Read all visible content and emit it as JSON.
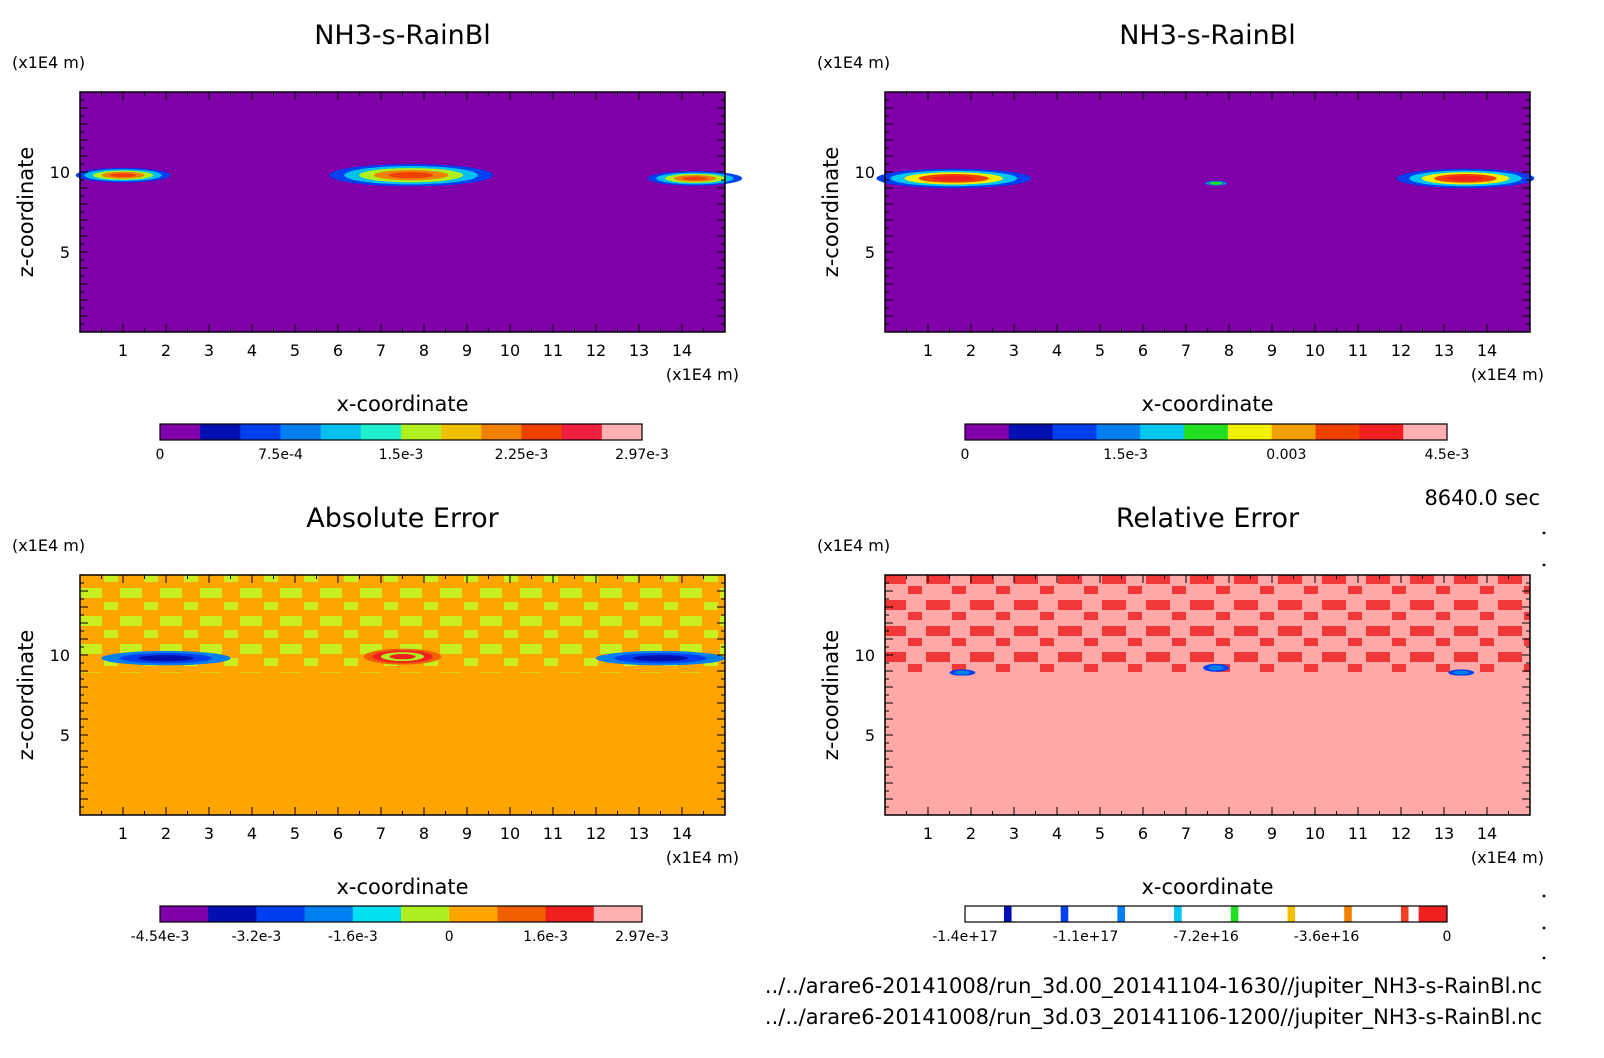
{
  "time_label": "8640.0 sec",
  "file_paths": [
    "../../arare6-20141008/run_3d.00_20141104-1630//jupiter_NH3-s-RainBl.nc",
    "../../arare6-20141008/run_3d.03_20141106-1200//jupiter_NH3-s-RainBl.nc"
  ],
  "chart_data": [
    {
      "type": "heatmap",
      "title": "NH3-s-RainBl",
      "xlabel": "x-coordinate",
      "ylabel": "z-coordinate",
      "x_unit": "(x1E4 m)",
      "y_unit": "(x1E4 m)",
      "xlim": [
        0,
        15
      ],
      "ylim": [
        0,
        15
      ],
      "x_ticks": [
        "1",
        "2",
        "3",
        "4",
        "5",
        "6",
        "7",
        "8",
        "9",
        "10",
        "11",
        "12",
        "13",
        "14"
      ],
      "y_ticks": [
        "5",
        "10"
      ],
      "background_color": "#7f00a8",
      "colorbar": {
        "colors": [
          "#7f00a8",
          "#0010b0",
          "#0040f0",
          "#0080f0",
          "#00c0f0",
          "#20f0d0",
          "#b0f020",
          "#f0c000",
          "#f08000",
          "#f04000",
          "#f02040",
          "#ffb0b0"
        ],
        "labels": [
          "0",
          "7.5e-4",
          "1.5e-3",
          "2.25e-3",
          "2.97e-3"
        ]
      },
      "features": [
        {
          "x_center": 1.0,
          "z_center": 9.8,
          "width": 2.2,
          "height": 0.9,
          "peak": "high"
        },
        {
          "x_center": 7.7,
          "z_center": 9.8,
          "width": 3.8,
          "height": 1.4,
          "peak": "high"
        },
        {
          "x_center": 14.3,
          "z_center": 9.6,
          "width": 2.2,
          "height": 0.9,
          "peak": "high"
        }
      ]
    },
    {
      "type": "heatmap",
      "title": "NH3-s-RainBl",
      "xlabel": "x-coordinate",
      "ylabel": "z-coordinate",
      "x_unit": "(x1E4 m)",
      "y_unit": "(x1E4 m)",
      "xlim": [
        0,
        15
      ],
      "ylim": [
        0,
        15
      ],
      "x_ticks": [
        "1",
        "2",
        "3",
        "4",
        "5",
        "6",
        "7",
        "8",
        "9",
        "10",
        "11",
        "12",
        "13",
        "14"
      ],
      "y_ticks": [
        "5",
        "10"
      ],
      "background_color": "#7f00a8",
      "colorbar": {
        "colors": [
          "#7f00a8",
          "#0010b0",
          "#0040f0",
          "#0080f0",
          "#00c8f0",
          "#20e020",
          "#f0f000",
          "#f0a000",
          "#f04000",
          "#f02020",
          "#ffb0b0"
        ],
        "labels": [
          "0",
          "1.5e-3",
          "0.003",
          "4.5e-3"
        ]
      },
      "features": [
        {
          "x_center": 1.6,
          "z_center": 9.6,
          "width": 3.6,
          "height": 1.2,
          "peak": "high"
        },
        {
          "x_center": 7.7,
          "z_center": 9.3,
          "width": 0.5,
          "height": 0.3,
          "peak": "low"
        },
        {
          "x_center": 13.5,
          "z_center": 9.6,
          "width": 3.2,
          "height": 1.2,
          "peak": "high"
        }
      ]
    },
    {
      "type": "heatmap",
      "title": "Absolute Error",
      "xlabel": "x-coordinate",
      "ylabel": "z-coordinate",
      "x_unit": "(x1E4 m)",
      "y_unit": "(x1E4 m)",
      "xlim": [
        0,
        15
      ],
      "ylim": [
        0,
        15
      ],
      "x_ticks": [
        "1",
        "2",
        "3",
        "4",
        "5",
        "6",
        "7",
        "8",
        "9",
        "10",
        "11",
        "12",
        "13",
        "14"
      ],
      "y_ticks": [
        "5",
        "10"
      ],
      "background_color": "#ffa500",
      "colorbar": {
        "colors": [
          "#7f00a8",
          "#0010b0",
          "#0040f0",
          "#0080f0",
          "#00e0f0",
          "#b0f020",
          "#ffa500",
          "#f06000",
          "#f02020",
          "#ffb0b0"
        ],
        "labels": [
          "-4.54e-3",
          "-3.2e-3",
          "-1.6e-3",
          "0",
          "1.6e-3",
          "2.97e-3"
        ]
      },
      "features": [
        {
          "x_center": 2.0,
          "z_center": 9.8,
          "width": 3.0,
          "height": 0.9,
          "peak": "negative"
        },
        {
          "x_center": 7.5,
          "z_center": 9.9,
          "width": 1.8,
          "height": 1.0,
          "peak": "positive"
        },
        {
          "x_center": 13.5,
          "z_center": 9.8,
          "width": 3.0,
          "height": 0.9,
          "peak": "negative"
        }
      ]
    },
    {
      "type": "heatmap",
      "title": "Relative Error",
      "xlabel": "x-coordinate",
      "ylabel": "z-coordinate",
      "x_unit": "(x1E4 m)",
      "y_unit": "(x1E4 m)",
      "xlim": [
        0,
        15
      ],
      "ylim": [
        0,
        15
      ],
      "x_ticks": [
        "1",
        "2",
        "3",
        "4",
        "5",
        "6",
        "7",
        "8",
        "9",
        "10",
        "11",
        "12",
        "13",
        "14"
      ],
      "y_ticks": [
        "5",
        "10"
      ],
      "background_color": "#ffa8a8",
      "colorbar": {
        "colors": [
          "#ffffff",
          "#0010b0",
          "#ffffff",
          "#0040f0",
          "#ffffff",
          "#0080f0",
          "#ffffff",
          "#00c8f0",
          "#ffffff",
          "#20e020",
          "#ffffff",
          "#f0c000",
          "#ffffff",
          "#f08000",
          "#ffffff",
          "#f04020",
          "#f02020"
        ],
        "labels": [
          "-1.4e+17",
          "-1.1e+17",
          "-7.2e+16",
          "-3.6e+16",
          "0"
        ]
      },
      "features": [
        {
          "x_center": 1.8,
          "z_center": 8.9,
          "width": 0.6,
          "height": 0.4,
          "peak": "low"
        },
        {
          "x_center": 7.7,
          "z_center": 9.2,
          "width": 0.6,
          "height": 0.5,
          "peak": "low"
        },
        {
          "x_center": 13.4,
          "z_center": 8.9,
          "width": 0.6,
          "height": 0.4,
          "peak": "low"
        }
      ]
    }
  ]
}
